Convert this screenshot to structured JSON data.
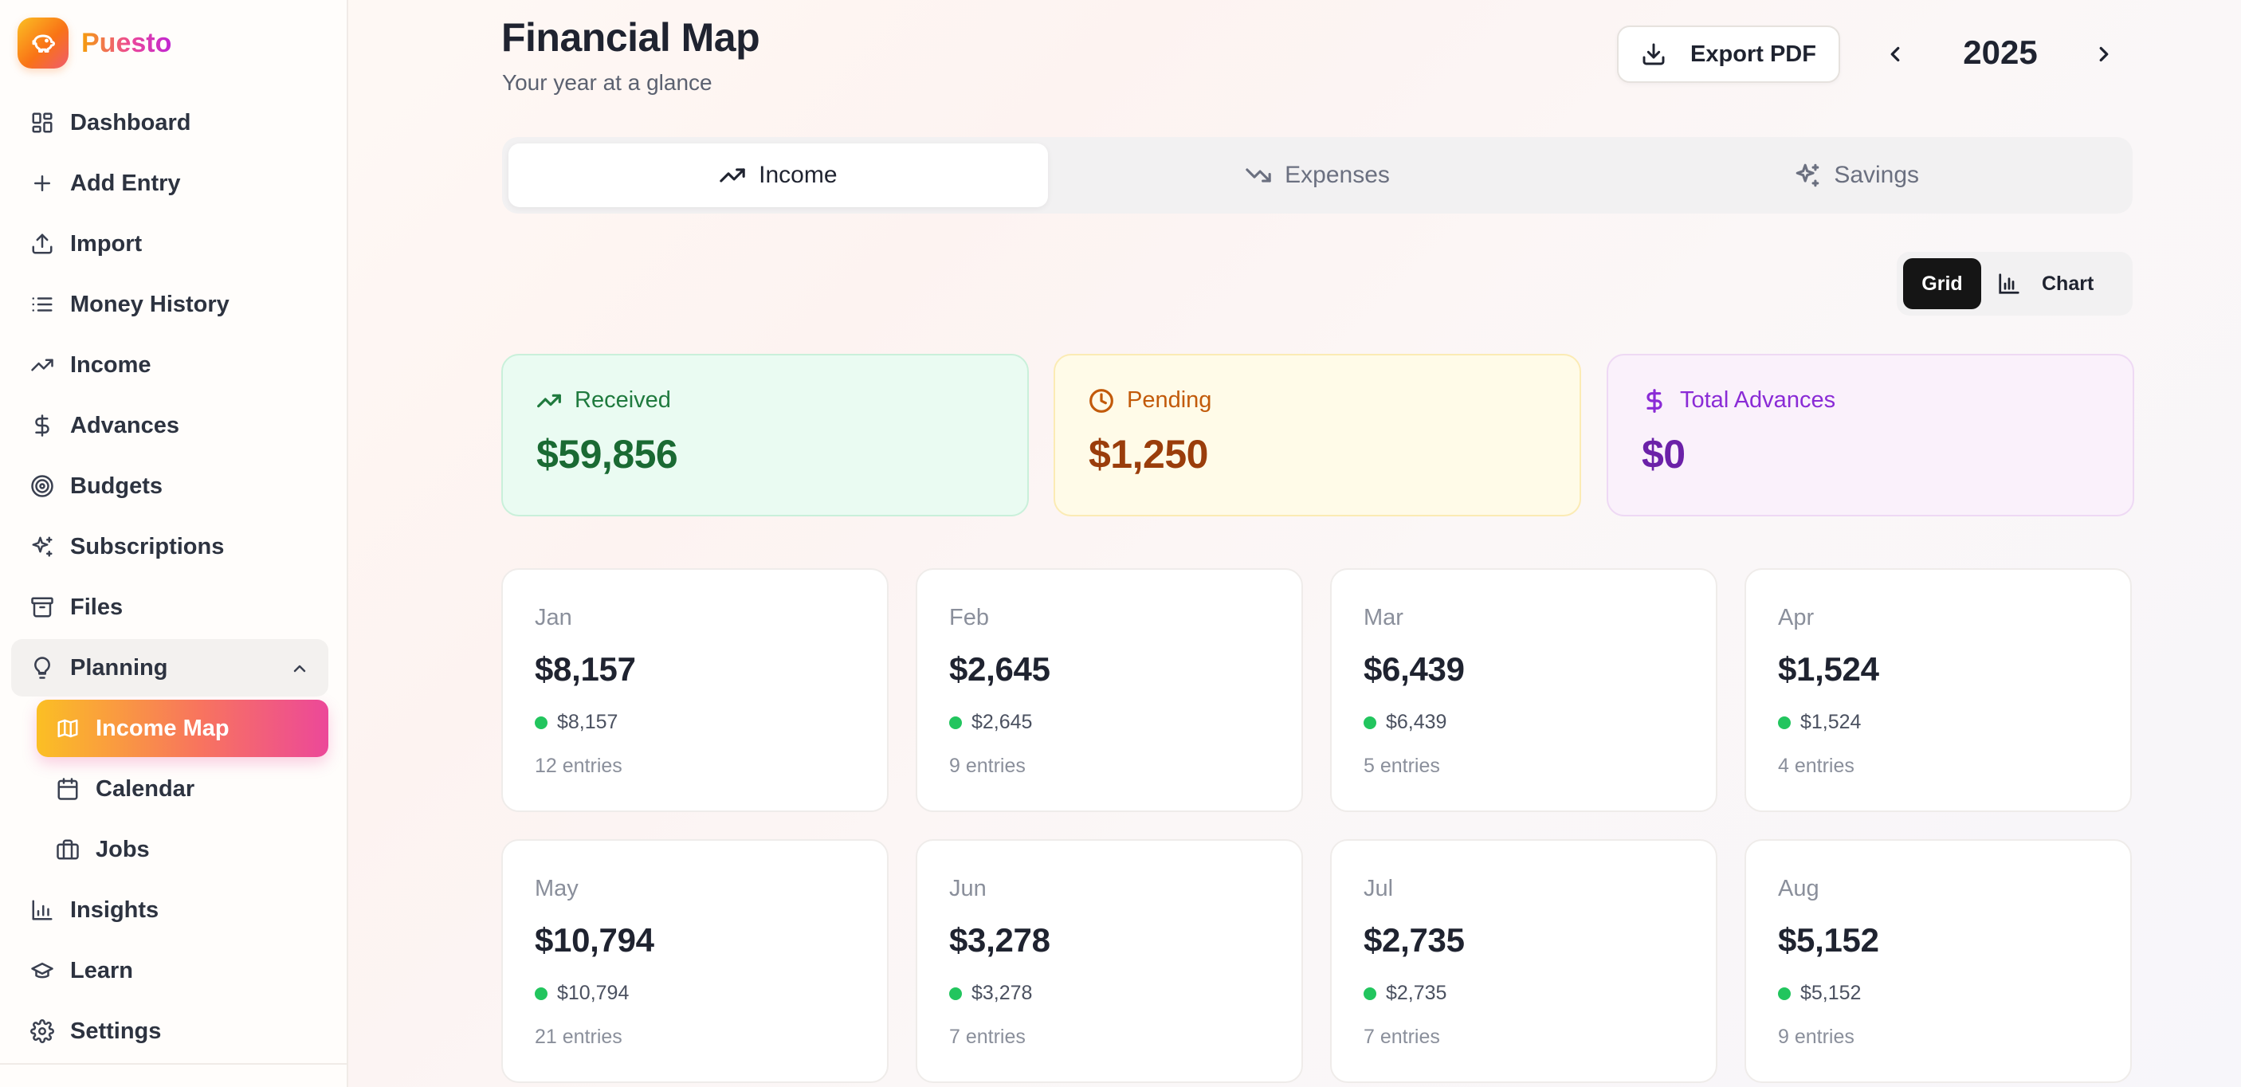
{
  "brand": {
    "name": "Puesto",
    "logo_icon": "piggy-bank-icon"
  },
  "sidebar": {
    "items": [
      {
        "label": "Dashboard",
        "icon": "dashboard-icon"
      },
      {
        "label": "Add Entry",
        "icon": "plus-icon"
      },
      {
        "label": "Import",
        "icon": "upload-icon"
      },
      {
        "label": "Money History",
        "icon": "list-icon"
      },
      {
        "label": "Income",
        "icon": "trending-up-icon"
      },
      {
        "label": "Advances",
        "icon": "dollar-icon"
      },
      {
        "label": "Budgets",
        "icon": "target-icon"
      },
      {
        "label": "Subscriptions",
        "icon": "sparkles-icon"
      },
      {
        "label": "Files",
        "icon": "archive-icon"
      }
    ],
    "planning": {
      "label": "Planning",
      "icon": "lightbulb-icon",
      "expanded": true,
      "children": [
        {
          "label": "Income Map",
          "icon": "map-icon",
          "active": true
        },
        {
          "label": "Calendar",
          "icon": "calendar-icon"
        },
        {
          "label": "Jobs",
          "icon": "briefcase-icon"
        }
      ]
    },
    "bottom_items": [
      {
        "label": "Insights",
        "icon": "bar-chart-icon"
      },
      {
        "label": "Learn",
        "icon": "graduation-cap-icon"
      },
      {
        "label": "Settings",
        "icon": "gear-icon"
      }
    ]
  },
  "header": {
    "title": "Financial Map",
    "subtitle": "Your year at a glance",
    "export_label": "Export PDF",
    "year": "2025"
  },
  "tabs": [
    {
      "label": "Income",
      "icon": "trending-up-icon",
      "active": true
    },
    {
      "label": "Expenses",
      "icon": "trending-down-icon",
      "active": false
    },
    {
      "label": "Savings",
      "icon": "sparkles-icon",
      "active": false
    }
  ],
  "view_toggle": {
    "grid_label": "Grid",
    "chart_label": "Chart",
    "selected": "Grid"
  },
  "summary": {
    "received": {
      "label": "Received",
      "value": "$59,856",
      "color": "#1a6a33"
    },
    "pending": {
      "label": "Pending",
      "value": "$1,250",
      "color": "#9a3d0b"
    },
    "advances": {
      "label": "Total Advances",
      "value": "$0",
      "color": "#6b21a8"
    }
  },
  "months": [
    {
      "name": "Jan",
      "total": "$8,157",
      "received": "$8,157",
      "entries": "12 entries"
    },
    {
      "name": "Feb",
      "total": "$2,645",
      "received": "$2,645",
      "entries": "9 entries"
    },
    {
      "name": "Mar",
      "total": "$6,439",
      "received": "$6,439",
      "entries": "5 entries"
    },
    {
      "name": "Apr",
      "total": "$1,524",
      "received": "$1,524",
      "entries": "4 entries"
    },
    {
      "name": "May",
      "total": "$10,794",
      "received": "$10,794",
      "entries": "21 entries"
    },
    {
      "name": "Jun",
      "total": "$3,278",
      "received": "$3,278",
      "entries": "7 entries"
    },
    {
      "name": "Jul",
      "total": "$2,735",
      "received": "$2,735",
      "entries": "7 entries"
    },
    {
      "name": "Aug",
      "total": "$5,152",
      "received": "$5,152",
      "entries": "9 entries"
    }
  ],
  "colors": {
    "accent_gradient_start": "#fbbf24",
    "accent_gradient_end": "#ec4899",
    "received_dot": "#22c55e"
  }
}
